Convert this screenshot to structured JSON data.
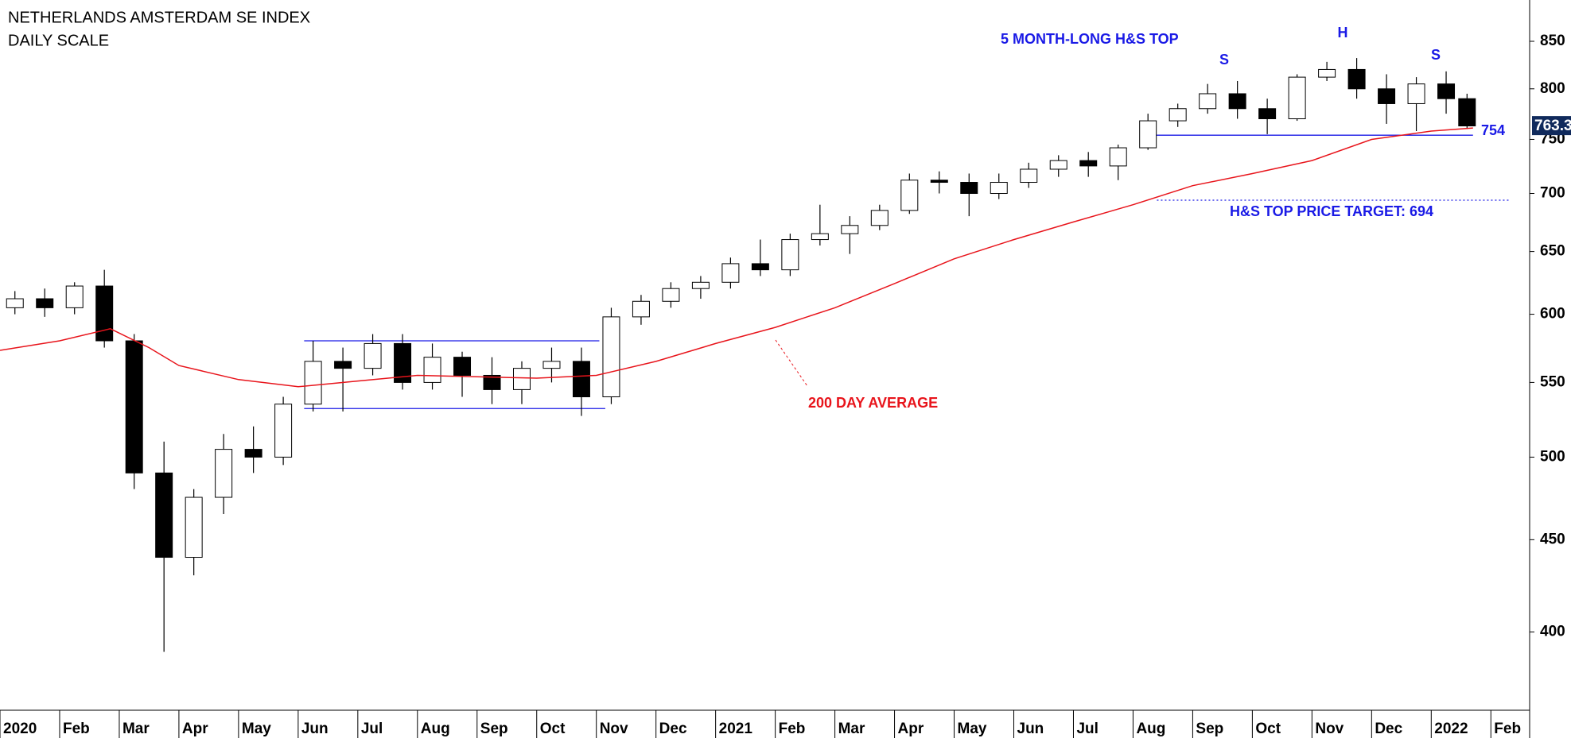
{
  "chart_data": {
    "type": "candlestick",
    "title": "NETHERLANDS AMSTERDAM SE INDEX",
    "subtitle": "DAILY SCALE",
    "log_scale": true,
    "xlim": [
      0,
      25.65
    ],
    "xticks": [
      {
        "value": 0,
        "label": "2020"
      },
      {
        "value": 1,
        "label": "Feb"
      },
      {
        "value": 2,
        "label": "Mar"
      },
      {
        "value": 3,
        "label": "Apr"
      },
      {
        "value": 4,
        "label": "May"
      },
      {
        "value": 5,
        "label": "Jun"
      },
      {
        "value": 6,
        "label": "Jul"
      },
      {
        "value": 7,
        "label": "Aug"
      },
      {
        "value": 8,
        "label": "Sep"
      },
      {
        "value": 9,
        "label": "Oct"
      },
      {
        "value": 10,
        "label": "Nov"
      },
      {
        "value": 11,
        "label": "Dec"
      },
      {
        "value": 12,
        "label": "2021"
      },
      {
        "value": 13,
        "label": "Feb"
      },
      {
        "value": 14,
        "label": "Mar"
      },
      {
        "value": 15,
        "label": "Apr"
      },
      {
        "value": 16,
        "label": "May"
      },
      {
        "value": 17,
        "label": "Jun"
      },
      {
        "value": 18,
        "label": "Jul"
      },
      {
        "value": 19,
        "label": "Aug"
      },
      {
        "value": 20,
        "label": "Sep"
      },
      {
        "value": 21,
        "label": "Oct"
      },
      {
        "value": 22,
        "label": "Nov"
      },
      {
        "value": 23,
        "label": "Dec"
      },
      {
        "value": 24,
        "label": "2022"
      },
      {
        "value": 25,
        "label": "Feb"
      }
    ],
    "ylim": [
      362,
      896
    ],
    "yticks": [
      400,
      450,
      500,
      550,
      600,
      650,
      700,
      750,
      800,
      850
    ],
    "ohlc": {
      "x": [
        0.25,
        0.75,
        1.25,
        1.75,
        2.25,
        2.75,
        3.25,
        3.75,
        4.25,
        4.75,
        5.25,
        5.75,
        6.25,
        6.75,
        7.25,
        7.75,
        8.25,
        8.75,
        9.25,
        9.75,
        10.25,
        10.75,
        11.25,
        11.75,
        12.25,
        12.75,
        13.25,
        13.75,
        14.25,
        14.75,
        15.25,
        15.75,
        16.25,
        16.75,
        17.25,
        17.75,
        18.25,
        18.75,
        19.25,
        19.75,
        20.25,
        20.75,
        21.25,
        21.75,
        22.25,
        22.75,
        23.25,
        23.75,
        24.25,
        24.6
      ],
      "open": [
        605,
        612,
        605,
        622,
        580,
        490,
        440,
        475,
        505,
        500,
        535,
        565,
        560,
        578,
        550,
        568,
        555,
        545,
        560,
        565,
        540,
        598,
        610,
        620,
        625,
        640,
        635,
        660,
        665,
        672,
        685,
        712,
        710,
        700,
        710,
        722,
        730,
        725,
        742,
        768,
        780,
        795,
        780,
        770,
        812,
        820,
        800,
        785,
        805,
        790
      ],
      "high": [
        618,
        620,
        625,
        635,
        585,
        510,
        480,
        515,
        520,
        540,
        580,
        575,
        585,
        585,
        578,
        572,
        568,
        565,
        575,
        575,
        605,
        615,
        625,
        630,
        645,
        660,
        665,
        690,
        680,
        690,
        718,
        720,
        718,
        718,
        728,
        735,
        738,
        745,
        775,
        785,
        805,
        808,
        790,
        815,
        828,
        832,
        815,
        812,
        818,
        795
      ],
      "low": [
        600,
        598,
        600,
        575,
        480,
        390,
        430,
        465,
        490,
        495,
        530,
        530,
        555,
        545,
        545,
        540,
        535,
        535,
        550,
        527,
        535,
        592,
        605,
        612,
        620,
        630,
        630,
        655,
        648,
        668,
        682,
        700,
        680,
        695,
        705,
        715,
        715,
        712,
        740,
        762,
        775,
        770,
        755,
        768,
        808,
        790,
        765,
        758,
        775,
        760
      ],
      "close": [
        612,
        605,
        622,
        580,
        490,
        440,
        475,
        505,
        500,
        535,
        565,
        560,
        578,
        550,
        568,
        555,
        545,
        560,
        565,
        540,
        598,
        610,
        620,
        625,
        640,
        635,
        660,
        665,
        672,
        685,
        712,
        710,
        700,
        710,
        722,
        730,
        725,
        742,
        768,
        780,
        795,
        780,
        770,
        812,
        820,
        800,
        785,
        805,
        790,
        763
      ]
    },
    "series": [
      {
        "name": "200 DAY AVERAGE",
        "color": "#e8141b",
        "x": [
          0,
          1,
          1.85,
          2.5,
          3,
          4,
          5,
          6,
          7,
          8,
          9,
          10,
          11,
          12,
          13,
          14,
          15,
          16,
          17,
          18,
          19,
          20,
          21,
          22,
          23,
          24,
          24.7
        ],
        "values": [
          573,
          580,
          589,
          575,
          562,
          552,
          547,
          551,
          555,
          554,
          553,
          555,
          565,
          578,
          590,
          605,
          624,
          644,
          660,
          675,
          690,
          707,
          718,
          730,
          750,
          758,
          761
        ]
      }
    ],
    "levels": [
      {
        "value": 580,
        "x": [
          5.1,
          10.05
        ],
        "color": "#1a1ae6"
      },
      {
        "value": 532,
        "x": [
          5.1,
          10.15
        ],
        "color": "#1a1ae6"
      },
      {
        "value": 754,
        "x": [
          19.3,
          24.7
        ],
        "color": "#1a1ae6"
      },
      {
        "value": 694,
        "x": [
          19.4,
          25.3
        ],
        "color": "#1a1ae6",
        "dotted": true,
        "label": "H&S TOP PRICE TARGET: 694"
      }
    ],
    "last_price": 763.3,
    "annotations": [
      "5 MONTH-LONG H&S TOP",
      "S",
      "H",
      "S"
    ]
  }
}
